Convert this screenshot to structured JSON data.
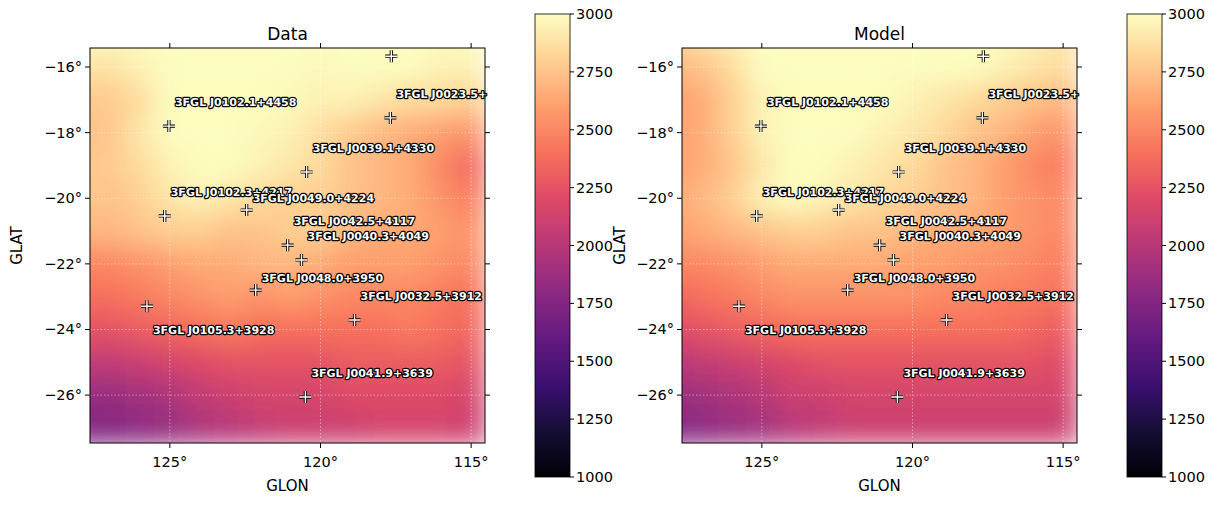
{
  "chart_data": [
    {
      "type": "heatmap",
      "title": "Data",
      "xlabel": "GLON",
      "ylabel": "GLAT",
      "grid": true,
      "xlim": [
        127.65,
        114.54
      ],
      "ylim": [
        -27.46,
        -15.42
      ],
      "xticks": [
        {
          "value": 125,
          "label": "125°"
        },
        {
          "value": 120,
          "label": "120°"
        },
        {
          "value": 115,
          "label": "115°"
        }
      ],
      "yticks": [
        {
          "value": -16,
          "label": "−16°"
        },
        {
          "value": -18,
          "label": "−18°"
        },
        {
          "value": -20,
          "label": "−20°"
        },
        {
          "value": -22,
          "label": "−22°"
        },
        {
          "value": -24,
          "label": "−24°"
        },
        {
          "value": -26,
          "label": "−26°"
        }
      ],
      "colorbar_range": [
        1000,
        3000
      ],
      "colorbar_ticks": [
        1000,
        1250,
        1500,
        1750,
        2000,
        2250,
        2500,
        2750,
        3000
      ],
      "cell_glon": [
        128,
        127,
        126,
        125,
        124,
        123,
        122,
        121,
        120,
        119,
        118,
        117,
        116,
        115
      ],
      "cell_glat": [
        -15,
        -16,
        -17,
        -18,
        -19,
        -20,
        -21,
        -22,
        -23,
        -24,
        -25,
        -26,
        -27
      ],
      "cells": [
        [
          3000,
          3000,
          3000,
          3000,
          3000,
          3000,
          3000,
          3000,
          3000,
          3000,
          3000,
          3000,
          3000,
          3000
        ],
        [
          2900,
          2880,
          2950,
          3000,
          3000,
          3000,
          3000,
          3000,
          2980,
          3000,
          3000,
          3000,
          2950,
          2950
        ],
        [
          2780,
          2780,
          2850,
          3000,
          3000,
          3000,
          3000,
          2980,
          2950,
          2950,
          2900,
          2850,
          2850,
          2800
        ],
        [
          2750,
          2760,
          2900,
          3000,
          3000,
          3000,
          2980,
          2950,
          2850,
          2780,
          2700,
          2650,
          2600,
          2550
        ],
        [
          2780,
          2780,
          2850,
          2950,
          3000,
          3000,
          2950,
          2900,
          2850,
          2750,
          2700,
          2650,
          2500,
          2350
        ],
        [
          2780,
          2750,
          2800,
          2900,
          2950,
          2900,
          2850,
          2800,
          2800,
          2750,
          2700,
          2650,
          2550,
          2450
        ],
        [
          2700,
          2700,
          2750,
          2800,
          2800,
          2750,
          2750,
          2800,
          2800,
          2700,
          2650,
          2650,
          2600,
          2550
        ],
        [
          2500,
          2500,
          2550,
          2600,
          2650,
          2650,
          2700,
          2700,
          2650,
          2600,
          2600,
          2600,
          2550,
          2500
        ],
        [
          2400,
          2400,
          2450,
          2500,
          2550,
          2600,
          2550,
          2600,
          2550,
          2500,
          2500,
          2500,
          2450,
          2400
        ],
        [
          2250,
          2250,
          2300,
          2350,
          2400,
          2450,
          2400,
          2400,
          2400,
          2400,
          2400,
          2450,
          2400,
          2350
        ],
        [
          2050,
          2050,
          2100,
          2150,
          2200,
          2250,
          2250,
          2250,
          2250,
          2300,
          2300,
          2300,
          2300,
          2250
        ],
        [
          1850,
          1850,
          1900,
          1950,
          2050,
          2100,
          2150,
          2150,
          2150,
          2200,
          2200,
          2200,
          2200,
          2150
        ],
        [
          1750,
          1750,
          1800,
          1850,
          1950,
          2000,
          2050,
          2100,
          2100,
          2100,
          2150,
          2150,
          2150,
          2100
        ]
      ],
      "sources": [
        {
          "label": "3FGL J0102.1+4458",
          "glon": 125.03,
          "glat": -17.8
        },
        {
          "label": "3FGL J0023.5+",
          "glon": 117.68,
          "glat": -17.55
        },
        {
          "label": null,
          "glon": 117.65,
          "glat": -15.67
        },
        {
          "label": "3FGL J0039.1+4330",
          "glon": 120.46,
          "glat": -19.2
        },
        {
          "label": "3FGL J0102.3+4217",
          "glon": 125.17,
          "glat": -20.54
        },
        {
          "label": "3FGL J0049.0+4224",
          "glon": 122.45,
          "glat": -20.36
        },
        {
          "label": "3FGL J0042.5+4117",
          "glon": 121.09,
          "glat": -21.43
        },
        {
          "label": "3FGL J0040.3+4049",
          "glon": 120.63,
          "glat": -21.88
        },
        {
          "label": "3FGL J0105.3+3928",
          "glon": 125.76,
          "glat": -23.29
        },
        {
          "label": "3FGL J0048.0+3950",
          "glon": 122.15,
          "glat": -22.8
        },
        {
          "label": "3FGL J0032.5+3912",
          "glon": 118.87,
          "glat": -23.71
        },
        {
          "label": "3FGL J0041.9+3639",
          "glon": 120.5,
          "glat": -26.06
        }
      ]
    },
    {
      "type": "heatmap",
      "title": "Model",
      "xlabel": "GLON",
      "ylabel": "GLAT",
      "grid": true,
      "xlim": [
        127.65,
        114.54
      ],
      "ylim": [
        -27.46,
        -15.42
      ],
      "xticks": [
        {
          "value": 125,
          "label": "125°"
        },
        {
          "value": 120,
          "label": "120°"
        },
        {
          "value": 115,
          "label": "115°"
        }
      ],
      "yticks": [
        {
          "value": -16,
          "label": "−16°"
        },
        {
          "value": -18,
          "label": "−18°"
        },
        {
          "value": -20,
          "label": "−20°"
        },
        {
          "value": -22,
          "label": "−22°"
        },
        {
          "value": -24,
          "label": "−24°"
        },
        {
          "value": -26,
          "label": "−26°"
        }
      ],
      "colorbar_range": [
        1000,
        3000
      ],
      "colorbar_ticks": [
        1000,
        1250,
        1500,
        1750,
        2000,
        2250,
        2500,
        2750,
        3000
      ],
      "cell_glon": [
        128,
        127,
        126,
        125,
        124,
        123,
        122,
        121,
        120,
        119,
        118,
        117,
        116,
        115
      ],
      "cell_glat": [
        -15,
        -16,
        -17,
        -18,
        -19,
        -20,
        -21,
        -22,
        -23,
        -24,
        -25,
        -26,
        -27
      ],
      "cells": [
        [
          2850,
          2900,
          2950,
          3000,
          3000,
          3000,
          3000,
          3000,
          3000,
          3000,
          3000,
          3000,
          2950,
          2900
        ],
        [
          2700,
          2750,
          2850,
          3000,
          3000,
          3000,
          3000,
          3000,
          3000,
          3000,
          3000,
          2950,
          2900,
          2850
        ],
        [
          2600,
          2650,
          2800,
          2950,
          3000,
          3000,
          3000,
          3000,
          2950,
          2900,
          2850,
          2800,
          2750,
          2700
        ],
        [
          2600,
          2650,
          2800,
          2950,
          3000,
          3000,
          3000,
          2950,
          2900,
          2850,
          2750,
          2700,
          2600,
          2550
        ],
        [
          2600,
          2650,
          2750,
          2900,
          3000,
          3000,
          2950,
          2900,
          2850,
          2750,
          2700,
          2600,
          2500,
          2450
        ],
        [
          2650,
          2700,
          2800,
          2950,
          3000,
          2950,
          2900,
          2850,
          2800,
          2750,
          2700,
          2600,
          2550,
          2500
        ],
        [
          2600,
          2650,
          2700,
          2750,
          2800,
          2800,
          2750,
          2750,
          2700,
          2650,
          2650,
          2600,
          2550,
          2500
        ],
        [
          2500,
          2500,
          2550,
          2600,
          2650,
          2650,
          2650,
          2650,
          2600,
          2600,
          2550,
          2550,
          2500,
          2450
        ],
        [
          2350,
          2400,
          2450,
          2500,
          2550,
          2550,
          2550,
          2550,
          2550,
          2500,
          2500,
          2450,
          2450,
          2400
        ],
        [
          2200,
          2250,
          2300,
          2350,
          2400,
          2400,
          2400,
          2400,
          2400,
          2400,
          2400,
          2400,
          2350,
          2300
        ],
        [
          2000,
          2050,
          2100,
          2150,
          2200,
          2250,
          2250,
          2250,
          2250,
          2250,
          2250,
          2250,
          2250,
          2200
        ],
        [
          1850,
          1900,
          1950,
          2000,
          2100,
          2100,
          2150,
          2150,
          2150,
          2150,
          2150,
          2150,
          2150,
          2150
        ],
        [
          1750,
          1800,
          1850,
          1900,
          2000,
          2050,
          2100,
          2100,
          2100,
          2100,
          2100,
          2100,
          2100,
          2100
        ]
      ],
      "sources": [
        {
          "label": "3FGL J0102.1+4458",
          "glon": 125.03,
          "glat": -17.8
        },
        {
          "label": "3FGL J0023.5+",
          "glon": 117.68,
          "glat": -17.55
        },
        {
          "label": null,
          "glon": 117.65,
          "glat": -15.67
        },
        {
          "label": "3FGL J0039.1+4330",
          "glon": 120.46,
          "glat": -19.2
        },
        {
          "label": "3FGL J0102.3+4217",
          "glon": 125.17,
          "glat": -20.54
        },
        {
          "label": "3FGL J0049.0+4224",
          "glon": 122.45,
          "glat": -20.36
        },
        {
          "label": "3FGL J0042.5+4117",
          "glon": 121.09,
          "glat": -21.43
        },
        {
          "label": "3FGL J0040.3+4049",
          "glon": 120.63,
          "glat": -21.88
        },
        {
          "label": "3FGL J0105.3+3928",
          "glon": 125.76,
          "glat": -23.29
        },
        {
          "label": "3FGL J0048.0+3950",
          "glon": 122.15,
          "glat": -22.8
        },
        {
          "label": "3FGL J0032.5+3912",
          "glon": 118.87,
          "glat": -23.71
        },
        {
          "label": "3FGL J0041.9+3639",
          "glon": 120.5,
          "glat": -26.06
        }
      ]
    }
  ]
}
